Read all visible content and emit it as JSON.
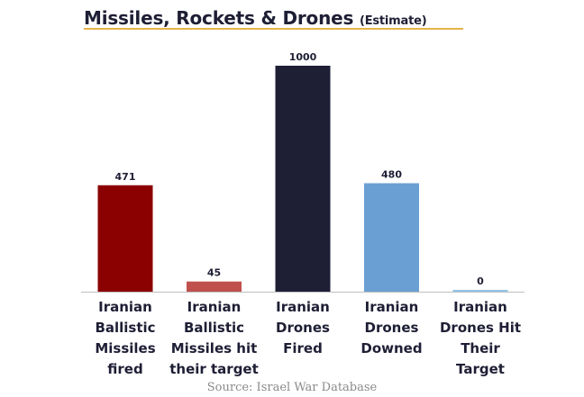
{
  "chart_data": {
    "type": "bar",
    "title": "Missiles, Rockets & Drones",
    "subtitle": "(Estimate)",
    "xlabel": "",
    "ylabel": "",
    "ylim": [
      0,
      1000
    ],
    "grid": false,
    "legend": "none",
    "categories": [
      [
        "Iranian",
        "Ballistic",
        "Missiles",
        "fired"
      ],
      [
        "Iranian",
        "Ballistic",
        "Missiles hit",
        "their target"
      ],
      [
        "Iranian",
        "Drones",
        "Fired"
      ],
      [
        "Iranian",
        "Drones",
        "Downed"
      ],
      [
        "Iranian",
        "Drones Hit",
        "Their",
        "Target"
      ]
    ],
    "values": [
      471,
      45,
      1000,
      480,
      0
    ],
    "value_labels": [
      "471",
      "45",
      "1000",
      "480",
      "0"
    ],
    "colors": [
      "#8b0000",
      "#c0504d",
      "#1e1e35",
      "#6a9fd3",
      "#8fc3e8"
    ],
    "source": "Source: Israel War Database"
  },
  "colors": {
    "title": "#1e1e35",
    "title_rule": "#e6b34a",
    "axis": "#bfbfbf",
    "label": "#1e1e35"
  }
}
